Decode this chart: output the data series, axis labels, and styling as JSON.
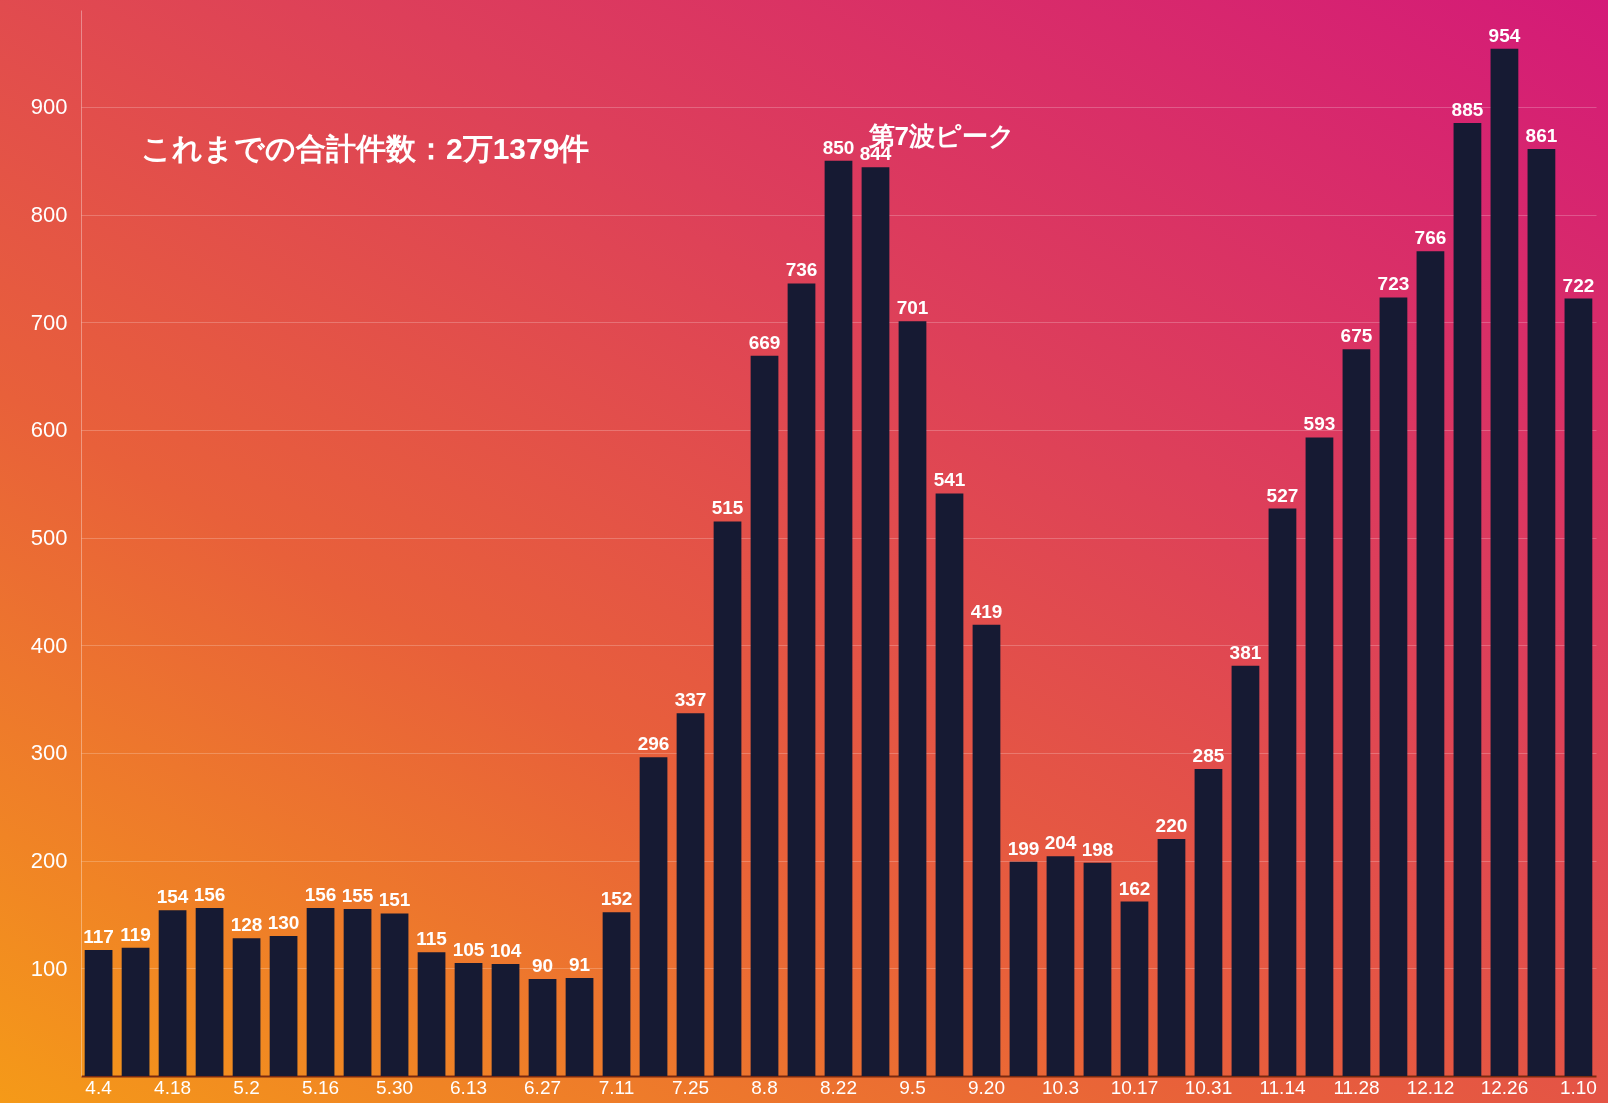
{
  "chart_data": {
    "type": "bar",
    "categories": [
      "4.4",
      null,
      "4.18",
      null,
      "5.2",
      null,
      "5.16",
      null,
      "5.30",
      null,
      "6.13",
      null,
      "6.27",
      null,
      "7.11",
      null,
      "7.25",
      null,
      "8.8",
      null,
      "8.22",
      null,
      "9.5",
      null,
      "9.20",
      null,
      "10.3",
      null,
      "10.17",
      null,
      "10.31",
      null,
      "11.14",
      null,
      "11.28",
      null,
      "12.12",
      null,
      "12.26",
      null,
      "1.10"
    ],
    "values": [
      117,
      119,
      154,
      156,
      128,
      130,
      156,
      155,
      151,
      115,
      105,
      104,
      90,
      91,
      152,
      296,
      337,
      515,
      669,
      736,
      850,
      844,
      701,
      541,
      419,
      199,
      204,
      198,
      162,
      220,
      285,
      381,
      527,
      593,
      675,
      723,
      766,
      885,
      954,
      861,
      722
    ],
    "color": "#161a33",
    "ylim": [
      0,
      990
    ],
    "yticks": [
      100,
      200,
      300,
      400,
      500,
      600,
      700,
      800,
      900
    ],
    "grid": "y",
    "data_labels": true,
    "annotations": [
      "これまでの合計件数：2万1379件",
      {
        "text": "第7波ピーク",
        "x": "8.22",
        "y": 850
      }
    ]
  }
}
